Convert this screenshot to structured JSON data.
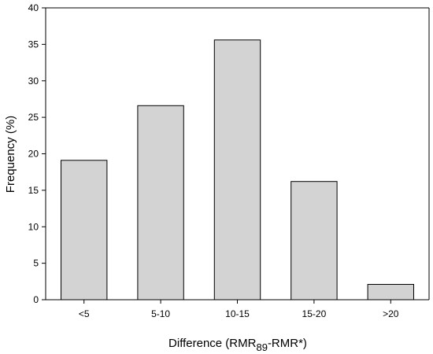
{
  "chart_data": {
    "type": "bar",
    "categories": [
      "<5",
      "5-10",
      "10-15",
      "15-20",
      ">20"
    ],
    "values": [
      19.1,
      26.6,
      35.6,
      16.2,
      2.1
    ],
    "xlabel": {
      "prefix": "Difference (RMR",
      "subscript": "89",
      "suffix": "-RMR*)"
    },
    "ylabel": "Frequency (%)",
    "ylim": [
      0,
      40
    ],
    "yticks": [
      0,
      5,
      10,
      15,
      20,
      25,
      30,
      35,
      40
    ],
    "grid": false,
    "legend": "none",
    "colors": {
      "bar_fill": "#d3d3d3",
      "bar_stroke": "#000000"
    }
  }
}
